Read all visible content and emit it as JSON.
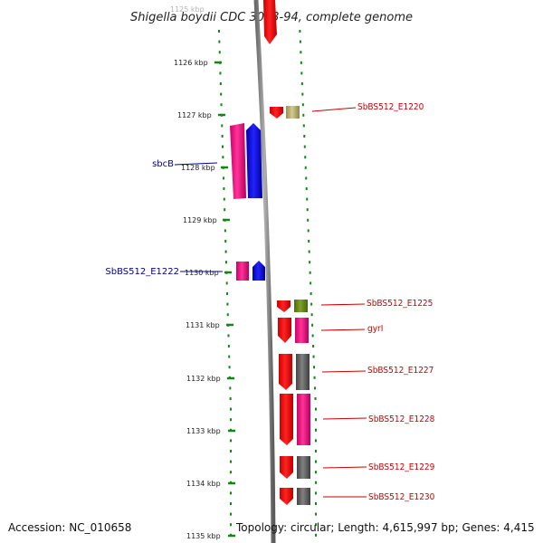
{
  "title": "Shigella boydii CDC 3083-94, complete genome",
  "footer": {
    "accession": "Accession: NC_010658",
    "summary": "Topology: circular; Length: 4,615,997 bp; Genes: 4,415"
  },
  "ruler": [
    "1125 kbp",
    "1126 kbp",
    "1127 kbp",
    "1128 kbp",
    "1129 kbp",
    "1130 kbp",
    "1131 kbp",
    "1132 kbp",
    "1133 kbp",
    "1134 kbp",
    "1135 kbp"
  ],
  "colors": {
    "red": "#ff0000",
    "magenta": "#ee1188",
    "blue": "#0000ee",
    "gray": "#666666",
    "khaki": "#bbb377",
    "olive": "#6f8f1f",
    "green": "#118811",
    "red_label": "#cc0000",
    "blue_label": "#000099"
  },
  "labels_left": [
    {
      "text": "sbcB"
    },
    {
      "text": "SbBS512_E1222"
    }
  ],
  "labels_right": [
    {
      "text": "SbBS512_E1220"
    },
    {
      "text": "SbBS512_E1225"
    },
    {
      "text": "gyrI"
    },
    {
      "text": "SbBS512_E1227"
    },
    {
      "text": "SbBS512_E1228"
    },
    {
      "text": "SbBS512_E1229"
    },
    {
      "text": "SbBS512_E1230"
    }
  ]
}
